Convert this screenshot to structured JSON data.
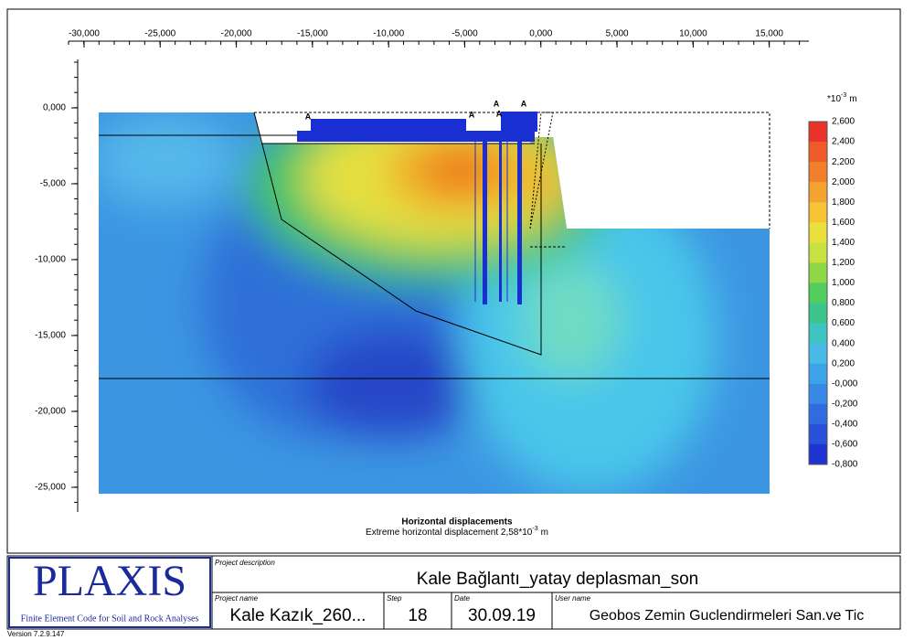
{
  "axes": {
    "x_labels": [
      "-30,000",
      "-25,000",
      "-20,000",
      "-15,000",
      "-10,000",
      "-5,000",
      "0,000",
      "5,000",
      "10,000",
      "15,000"
    ],
    "y_labels": [
      "0,000",
      "-5,000",
      "-10,000",
      "-15,000",
      "-20,000",
      "-25,000"
    ]
  },
  "legend": {
    "unit_base": "*10",
    "unit_exponent": "-3",
    "unit_suffix": "m",
    "labels": [
      "2,600",
      "2,400",
      "2,200",
      "2,000",
      "1,800",
      "1,600",
      "1,400",
      "1,200",
      "1,000",
      "0,800",
      "0,600",
      "0,400",
      "0,200",
      "-0,000",
      "-0,200",
      "-0,400",
      "-0,600",
      "-0,800"
    ]
  },
  "markers": [
    "A",
    "A",
    "A",
    "A",
    "A"
  ],
  "plot": {
    "title": "Horizontal displacements",
    "subtitle": "Extreme horizontal displacement 2,58*10",
    "subtitle_exponent": "-3",
    "subtitle_suffix": "m"
  },
  "footer": {
    "logo": "PLAXIS",
    "tagline": "Finite Element Code for Soil and Rock Analyses",
    "project_description": {
      "label": "Project description",
      "value": "Kale Bağlantı_yatay deplasman_son"
    },
    "project_name": {
      "label": "Project name",
      "value": "Kale Kazık_260..."
    },
    "step": {
      "label": "Step",
      "value": "18"
    },
    "date": {
      "label": "Date",
      "value": "30.09.19"
    },
    "user_name": {
      "label": "User name",
      "value": "Geobos Zemin Guclendirmeleri San.ve Tic"
    },
    "version": "Version 7.2.9.147"
  }
}
